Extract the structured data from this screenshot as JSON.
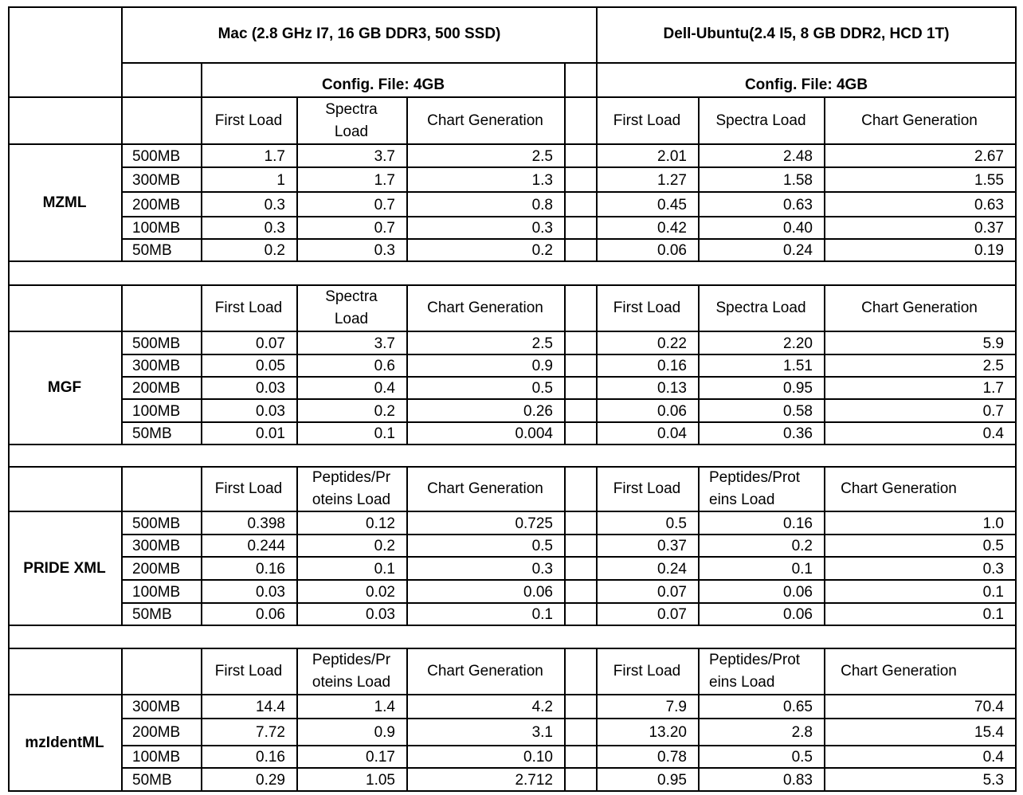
{
  "headers": {
    "mac": "Mac (2.8 GHz I7, 16 GB DDR3, 500 SSD)",
    "dell": "Dell-Ubuntu(2.4 I5, 8 GB DDR2, HCD 1T)",
    "mac_config": "Config. File: 4GB",
    "dell_config": "Config. File: 4GB"
  },
  "sections": [
    {
      "name": "MZML",
      "columns": [
        "First Load",
        "Spectra Load",
        "Chart Generation",
        "First Load",
        "Spectra Load",
        "Chart Generation"
      ],
      "mac_col2_lines": [
        "Spectra",
        "Load"
      ],
      "dell_col2_lines": [
        "Spectra Load"
      ],
      "rows": [
        {
          "size": "500MB",
          "values": [
            "1.7",
            "3.7",
            "2.5",
            "2.01",
            "2.48",
            "2.67"
          ]
        },
        {
          "size": "300MB",
          "values": [
            "1",
            "1.7",
            "1.3",
            "1.27",
            "1.58",
            "1.55"
          ]
        },
        {
          "size": "200MB",
          "values": [
            "0.3",
            "0.7",
            "0.8",
            "0.45",
            "0.63",
            "0.63"
          ]
        },
        {
          "size": "100MB",
          "values": [
            "0.3",
            "0.7",
            "0.3",
            "0.42",
            "0.40",
            "0.37"
          ]
        },
        {
          "size": "50MB",
          "values": [
            "0.2",
            "0.3",
            "0.2",
            "0.06",
            "0.24",
            "0.19"
          ]
        }
      ]
    },
    {
      "name": "MGF",
      "columns": [
        "First Load",
        "Spectra Load",
        "Chart Generation",
        "First Load",
        "Spectra Load",
        "Chart Generation"
      ],
      "mac_col2_lines": [
        "Spectra",
        "Load"
      ],
      "dell_col2_lines": [
        "Spectra Load"
      ],
      "rows": [
        {
          "size": "500MB",
          "values": [
            "0.07",
            "3.7",
            "2.5",
            "0.22",
            "2.20",
            "5.9"
          ]
        },
        {
          "size": "300MB",
          "values": [
            "0.05",
            "0.6",
            "0.9",
            "0.16",
            "1.51",
            "2.5"
          ]
        },
        {
          "size": "200MB",
          "values": [
            "0.03",
            "0.4",
            "0.5",
            "0.13",
            "0.95",
            "1.7"
          ]
        },
        {
          "size": "100MB",
          "values": [
            "0.03",
            "0.2",
            "0.26",
            "0.06",
            "0.58",
            "0.7"
          ]
        },
        {
          "size": "50MB",
          "values": [
            "0.01",
            "0.1",
            "0.004",
            "0.04",
            "0.36",
            "0.4"
          ]
        }
      ]
    },
    {
      "name": "PRIDE XML",
      "columns": [
        "First Load",
        "Peptides/Proteins Load",
        "Chart Generation",
        "First Load",
        "Peptides/Proteins Load",
        "Chart Generation"
      ],
      "mac_col2_lines": [
        "Peptides/Pr",
        "oteins Load"
      ],
      "dell_col2_lines": [
        "Peptides/Prot",
        "eins Load"
      ],
      "rows": [
        {
          "size": "500MB",
          "values": [
            "0.398",
            "0.12",
            "0.725",
            "0.5",
            "0.16",
            "1.0"
          ]
        },
        {
          "size": "300MB",
          "values": [
            "0.244",
            "0.2",
            "0.5",
            "0.37",
            "0.2",
            "0.5"
          ]
        },
        {
          "size": "200MB",
          "values": [
            "0.16",
            "0.1",
            "0.3",
            "0.24",
            "0.1",
            "0.3"
          ]
        },
        {
          "size": "100MB",
          "values": [
            "0.03",
            "0.02",
            "0.06",
            "0.07",
            "0.06",
            "0.1"
          ]
        },
        {
          "size": "50MB",
          "values": [
            "0.06",
            "0.03",
            "0.1",
            "0.07",
            "0.06",
            "0.1"
          ]
        }
      ]
    },
    {
      "name": "mzIdentML",
      "columns": [
        "First Load",
        "Peptides/Proteins Load",
        "Chart Generation",
        "First Load",
        "Peptides/Proteins Load",
        "Chart Generation"
      ],
      "mac_col2_lines": [
        "Peptides/Pr",
        "oteins Load"
      ],
      "dell_col2_lines": [
        "Peptides/Prot",
        "eins Load"
      ],
      "rows": [
        {
          "size": "300MB",
          "values": [
            "14.4",
            "1.4",
            "4.2",
            "7.9",
            "0.65",
            "70.4"
          ]
        },
        {
          "size": "200MB",
          "values": [
            "7.72",
            "0.9",
            "3.1",
            "13.20",
            "2.8",
            "15.4"
          ]
        },
        {
          "size": "100MB",
          "values": [
            "0.16",
            "0.17",
            "0.10",
            "0.78",
            "0.5",
            "0.4"
          ]
        },
        {
          "size": "50MB",
          "values": [
            "0.29",
            "1.05",
            "2.712",
            "0.95",
            "0.83",
            "5.3"
          ]
        }
      ]
    }
  ]
}
